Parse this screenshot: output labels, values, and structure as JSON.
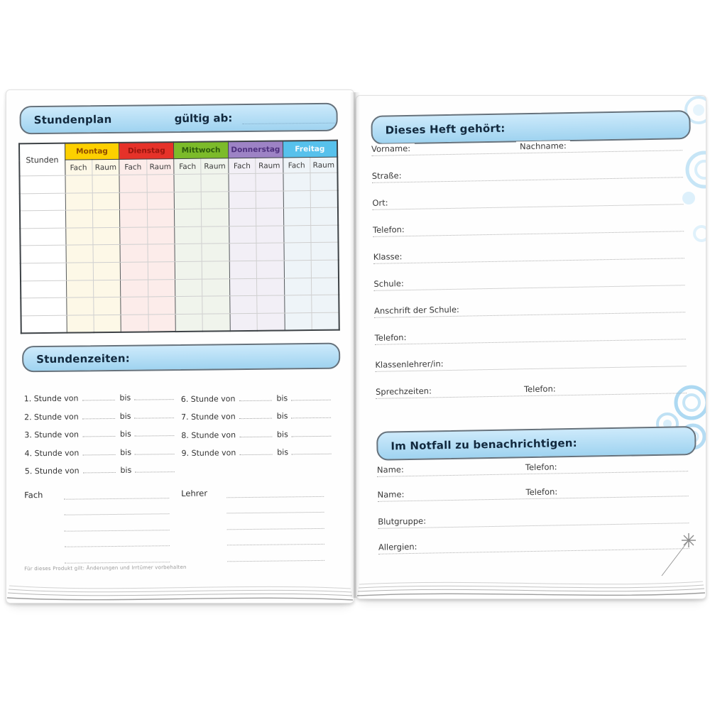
{
  "left_page": {
    "banner": {
      "title": "Stundenplan",
      "valid_from_label": "gültig ab:"
    },
    "timetable": {
      "corner_label": "Stunden",
      "sub_headers": [
        "Fach",
        "Raum"
      ],
      "rows_count": 9,
      "days": [
        {
          "label": "Montag",
          "header_bg": "#fdd000",
          "header_text": "#8f4a00",
          "tint": "#fdf8e7"
        },
        {
          "label": "Dienstag",
          "header_bg": "#e63229",
          "header_text": "#97150d",
          "tint": "#fcecea"
        },
        {
          "label": "Mittwoch",
          "header_bg": "#7cbb2a",
          "header_text": "#2c5a0d",
          "tint": "#f0f4ec"
        },
        {
          "label": "Donnerstag",
          "header_bg": "#9d83c5",
          "header_text": "#4c2f7c",
          "tint": "#f2eff6"
        },
        {
          "label": "Freitag",
          "header_bg": "#57c1ec",
          "header_text": "#f4fafd",
          "tint": "#eef4f8"
        }
      ]
    },
    "times_banner": {
      "title": "Stundenzeiten:"
    },
    "lessons": [
      {
        "label": "1. Stunde von",
        "bis": "bis"
      },
      {
        "label": "2. Stunde von",
        "bis": "bis"
      },
      {
        "label": "3. Stunde von",
        "bis": "bis"
      },
      {
        "label": "4. Stunde von",
        "bis": "bis"
      },
      {
        "label": "5. Stunde von",
        "bis": "bis"
      },
      {
        "label": "6. Stunde von",
        "bis": "bis"
      },
      {
        "label": "7. Stunde von",
        "bis": "bis"
      },
      {
        "label": "8. Stunde von",
        "bis": "bis"
      },
      {
        "label": "9. Stunde von",
        "bis": "bis"
      }
    ],
    "subjects": {
      "fach_label": "Fach",
      "lehrer_label": "Lehrer",
      "lines_per_column": 5
    },
    "footer_note": "Für dieses Produkt gilt: Änderungen und Irrtümer vorbehalten"
  },
  "right_page": {
    "owner_banner": {
      "title": "Dieses Heft gehört:"
    },
    "owner_fields": [
      {
        "label": "Vorname:",
        "label2": "Nachname:"
      },
      {
        "label": "Straße:"
      },
      {
        "label": "Ort:"
      },
      {
        "label": "Telefon:"
      },
      {
        "label": "Klasse:"
      },
      {
        "label": "Schule:"
      },
      {
        "label": "Anschrift der Schule:"
      },
      {
        "label": "Telefon:"
      },
      {
        "label": "Klassenlehrer/in:"
      },
      {
        "label": "Sprechzeiten:",
        "label2": "Telefon:"
      }
    ],
    "emergency_banner": {
      "title": "Im Notfall zu benachrichtigen:"
    },
    "emergency_fields": [
      {
        "label": "Name:",
        "label2": "Telefon:"
      },
      {
        "label": "Name:",
        "label2": "Telefon:"
      },
      {
        "label": "Blutgruppe:"
      },
      {
        "label": "Allergien:"
      }
    ]
  },
  "colors": {
    "banner_bg": "#aeddf6",
    "banner_border": "#66727c",
    "banner_text": "#12293e",
    "page_bg": "#fefefe",
    "dotted_line": "#a8a8a8",
    "swirl_decoration": "#c6e5f6",
    "table_outer_border": "#3d4246"
  }
}
